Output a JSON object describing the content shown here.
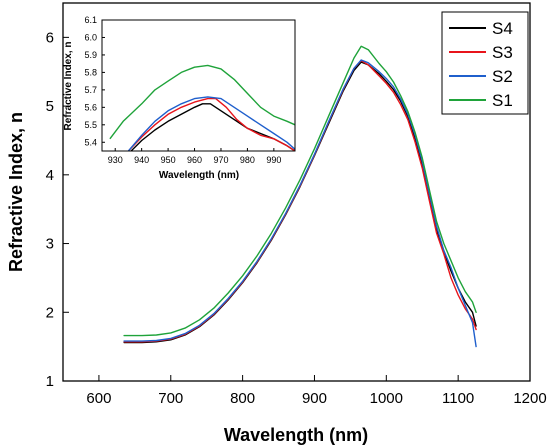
{
  "chart_data": [
    {
      "type": "line",
      "title": "",
      "xlabel": "Wavelength (nm)",
      "ylabel": "Refractive Index, n",
      "xlim": [
        550,
        1200
      ],
      "ylim": [
        1,
        6.5
      ],
      "xticks": [
        "600",
        "700",
        "800",
        "900",
        "1000",
        "1100",
        "1200"
      ],
      "yticks": [
        "1",
        "2",
        "3",
        "4",
        "5",
        "6"
      ],
      "grid": false,
      "legend_placement": "top-right",
      "series": [
        {
          "name": "S4",
          "color": "#000000",
          "x": [
            635,
            660,
            680,
            700,
            720,
            740,
            760,
            780,
            800,
            820,
            840,
            860,
            880,
            900,
            920,
            940,
            955,
            965,
            975,
            990,
            1000,
            1010,
            1020,
            1030,
            1040,
            1050,
            1060,
            1070,
            1080,
            1090,
            1100,
            1110,
            1120,
            1125
          ],
          "y": [
            1.56,
            1.56,
            1.57,
            1.6,
            1.67,
            1.79,
            1.96,
            2.18,
            2.43,
            2.72,
            3.05,
            3.42,
            3.83,
            4.28,
            4.75,
            5.22,
            5.52,
            5.64,
            5.6,
            5.47,
            5.36,
            5.24,
            5.07,
            4.85,
            4.54,
            4.15,
            3.68,
            3.2,
            2.88,
            2.6,
            2.35,
            2.15,
            2.0,
            1.8
          ]
        },
        {
          "name": "S3",
          "color": "#e8141b",
          "x": [
            635,
            660,
            680,
            700,
            720,
            740,
            760,
            780,
            800,
            820,
            840,
            860,
            880,
            900,
            920,
            940,
            955,
            965,
            975,
            990,
            1000,
            1010,
            1020,
            1030,
            1040,
            1050,
            1060,
            1070,
            1080,
            1090,
            1100,
            1110,
            1120,
            1125
          ],
          "y": [
            1.57,
            1.57,
            1.58,
            1.61,
            1.68,
            1.8,
            1.97,
            2.19,
            2.44,
            2.73,
            3.06,
            3.43,
            3.84,
            4.29,
            4.77,
            5.24,
            5.55,
            5.66,
            5.6,
            5.44,
            5.33,
            5.2,
            5.02,
            4.8,
            4.48,
            4.1,
            3.62,
            3.15,
            2.85,
            2.5,
            2.25,
            2.05,
            1.9,
            1.75
          ]
        },
        {
          "name": "S2",
          "color": "#1f5fcc",
          "x": [
            635,
            660,
            680,
            700,
            720,
            740,
            760,
            780,
            800,
            820,
            840,
            860,
            880,
            900,
            920,
            940,
            955,
            965,
            975,
            990,
            1000,
            1010,
            1020,
            1030,
            1040,
            1050,
            1060,
            1070,
            1080,
            1090,
            1100,
            1110,
            1120,
            1125
          ],
          "y": [
            1.58,
            1.58,
            1.59,
            1.62,
            1.69,
            1.81,
            1.98,
            2.2,
            2.45,
            2.74,
            3.07,
            3.44,
            3.85,
            4.3,
            4.78,
            5.25,
            5.55,
            5.67,
            5.63,
            5.5,
            5.4,
            5.28,
            5.1,
            4.88,
            4.58,
            4.2,
            3.72,
            3.25,
            2.9,
            2.65,
            2.35,
            2.1,
            1.85,
            1.5
          ]
        },
        {
          "name": "S1",
          "color": "#1fa33a",
          "x": [
            635,
            660,
            680,
            700,
            720,
            740,
            760,
            780,
            800,
            820,
            840,
            860,
            880,
            900,
            920,
            940,
            955,
            965,
            975,
            990,
            1000,
            1010,
            1020,
            1030,
            1040,
            1050,
            1060,
            1070,
            1080,
            1090,
            1100,
            1110,
            1120,
            1125
          ],
          "y": [
            1.66,
            1.66,
            1.67,
            1.7,
            1.77,
            1.89,
            2.06,
            2.28,
            2.53,
            2.82,
            3.15,
            3.52,
            3.93,
            4.38,
            4.86,
            5.34,
            5.7,
            5.87,
            5.82,
            5.62,
            5.5,
            5.35,
            5.15,
            4.92,
            4.62,
            4.25,
            3.78,
            3.32,
            3.0,
            2.75,
            2.5,
            2.3,
            2.15,
            2.0
          ]
        }
      ]
    },
    {
      "type": "line",
      "title": "",
      "xlabel": "Wavelength (nm)",
      "ylabel": "Refractive Index, n",
      "xlim": [
        925,
        998
      ],
      "ylim": [
        5.35,
        6.1
      ],
      "xticks": [
        "930",
        "940",
        "950",
        "960",
        "970",
        "980",
        "990"
      ],
      "yticks": [
        "5.4",
        "5.5",
        "5.6",
        "5.7",
        "5.8",
        "5.9",
        "6.0",
        "6.1"
      ],
      "grid": false,
      "series": [
        {
          "name": "S4",
          "color": "#000000",
          "x": [
            936,
            940,
            945,
            950,
            955,
            960,
            963,
            966,
            970,
            975,
            980,
            985,
            990,
            995,
            998
          ],
          "y": [
            5.35,
            5.41,
            5.47,
            5.52,
            5.56,
            5.6,
            5.62,
            5.62,
            5.58,
            5.53,
            5.48,
            5.45,
            5.42,
            5.38,
            5.35
          ]
        },
        {
          "name": "S3",
          "color": "#e8141b",
          "x": [
            935,
            940,
            945,
            950,
            955,
            960,
            965,
            968,
            972,
            976,
            980,
            985,
            990,
            995,
            998
          ],
          "y": [
            5.35,
            5.43,
            5.5,
            5.56,
            5.6,
            5.63,
            5.65,
            5.65,
            5.6,
            5.53,
            5.48,
            5.44,
            5.42,
            5.38,
            5.35
          ]
        },
        {
          "name": "S2",
          "color": "#1f5fcc",
          "x": [
            935,
            940,
            945,
            950,
            955,
            960,
            965,
            970,
            975,
            980,
            985,
            990,
            995,
            998
          ],
          "y": [
            5.35,
            5.44,
            5.52,
            5.58,
            5.62,
            5.65,
            5.66,
            5.65,
            5.6,
            5.55,
            5.5,
            5.45,
            5.4,
            5.36
          ]
        },
        {
          "name": "S1",
          "color": "#1fa33a",
          "x": [
            928,
            933,
            940,
            945,
            950,
            955,
            960,
            965,
            970,
            975,
            980,
            985,
            990,
            995,
            998
          ],
          "y": [
            5.42,
            5.52,
            5.62,
            5.7,
            5.75,
            5.8,
            5.83,
            5.84,
            5.82,
            5.76,
            5.68,
            5.6,
            5.55,
            5.52,
            5.5
          ]
        }
      ]
    }
  ]
}
